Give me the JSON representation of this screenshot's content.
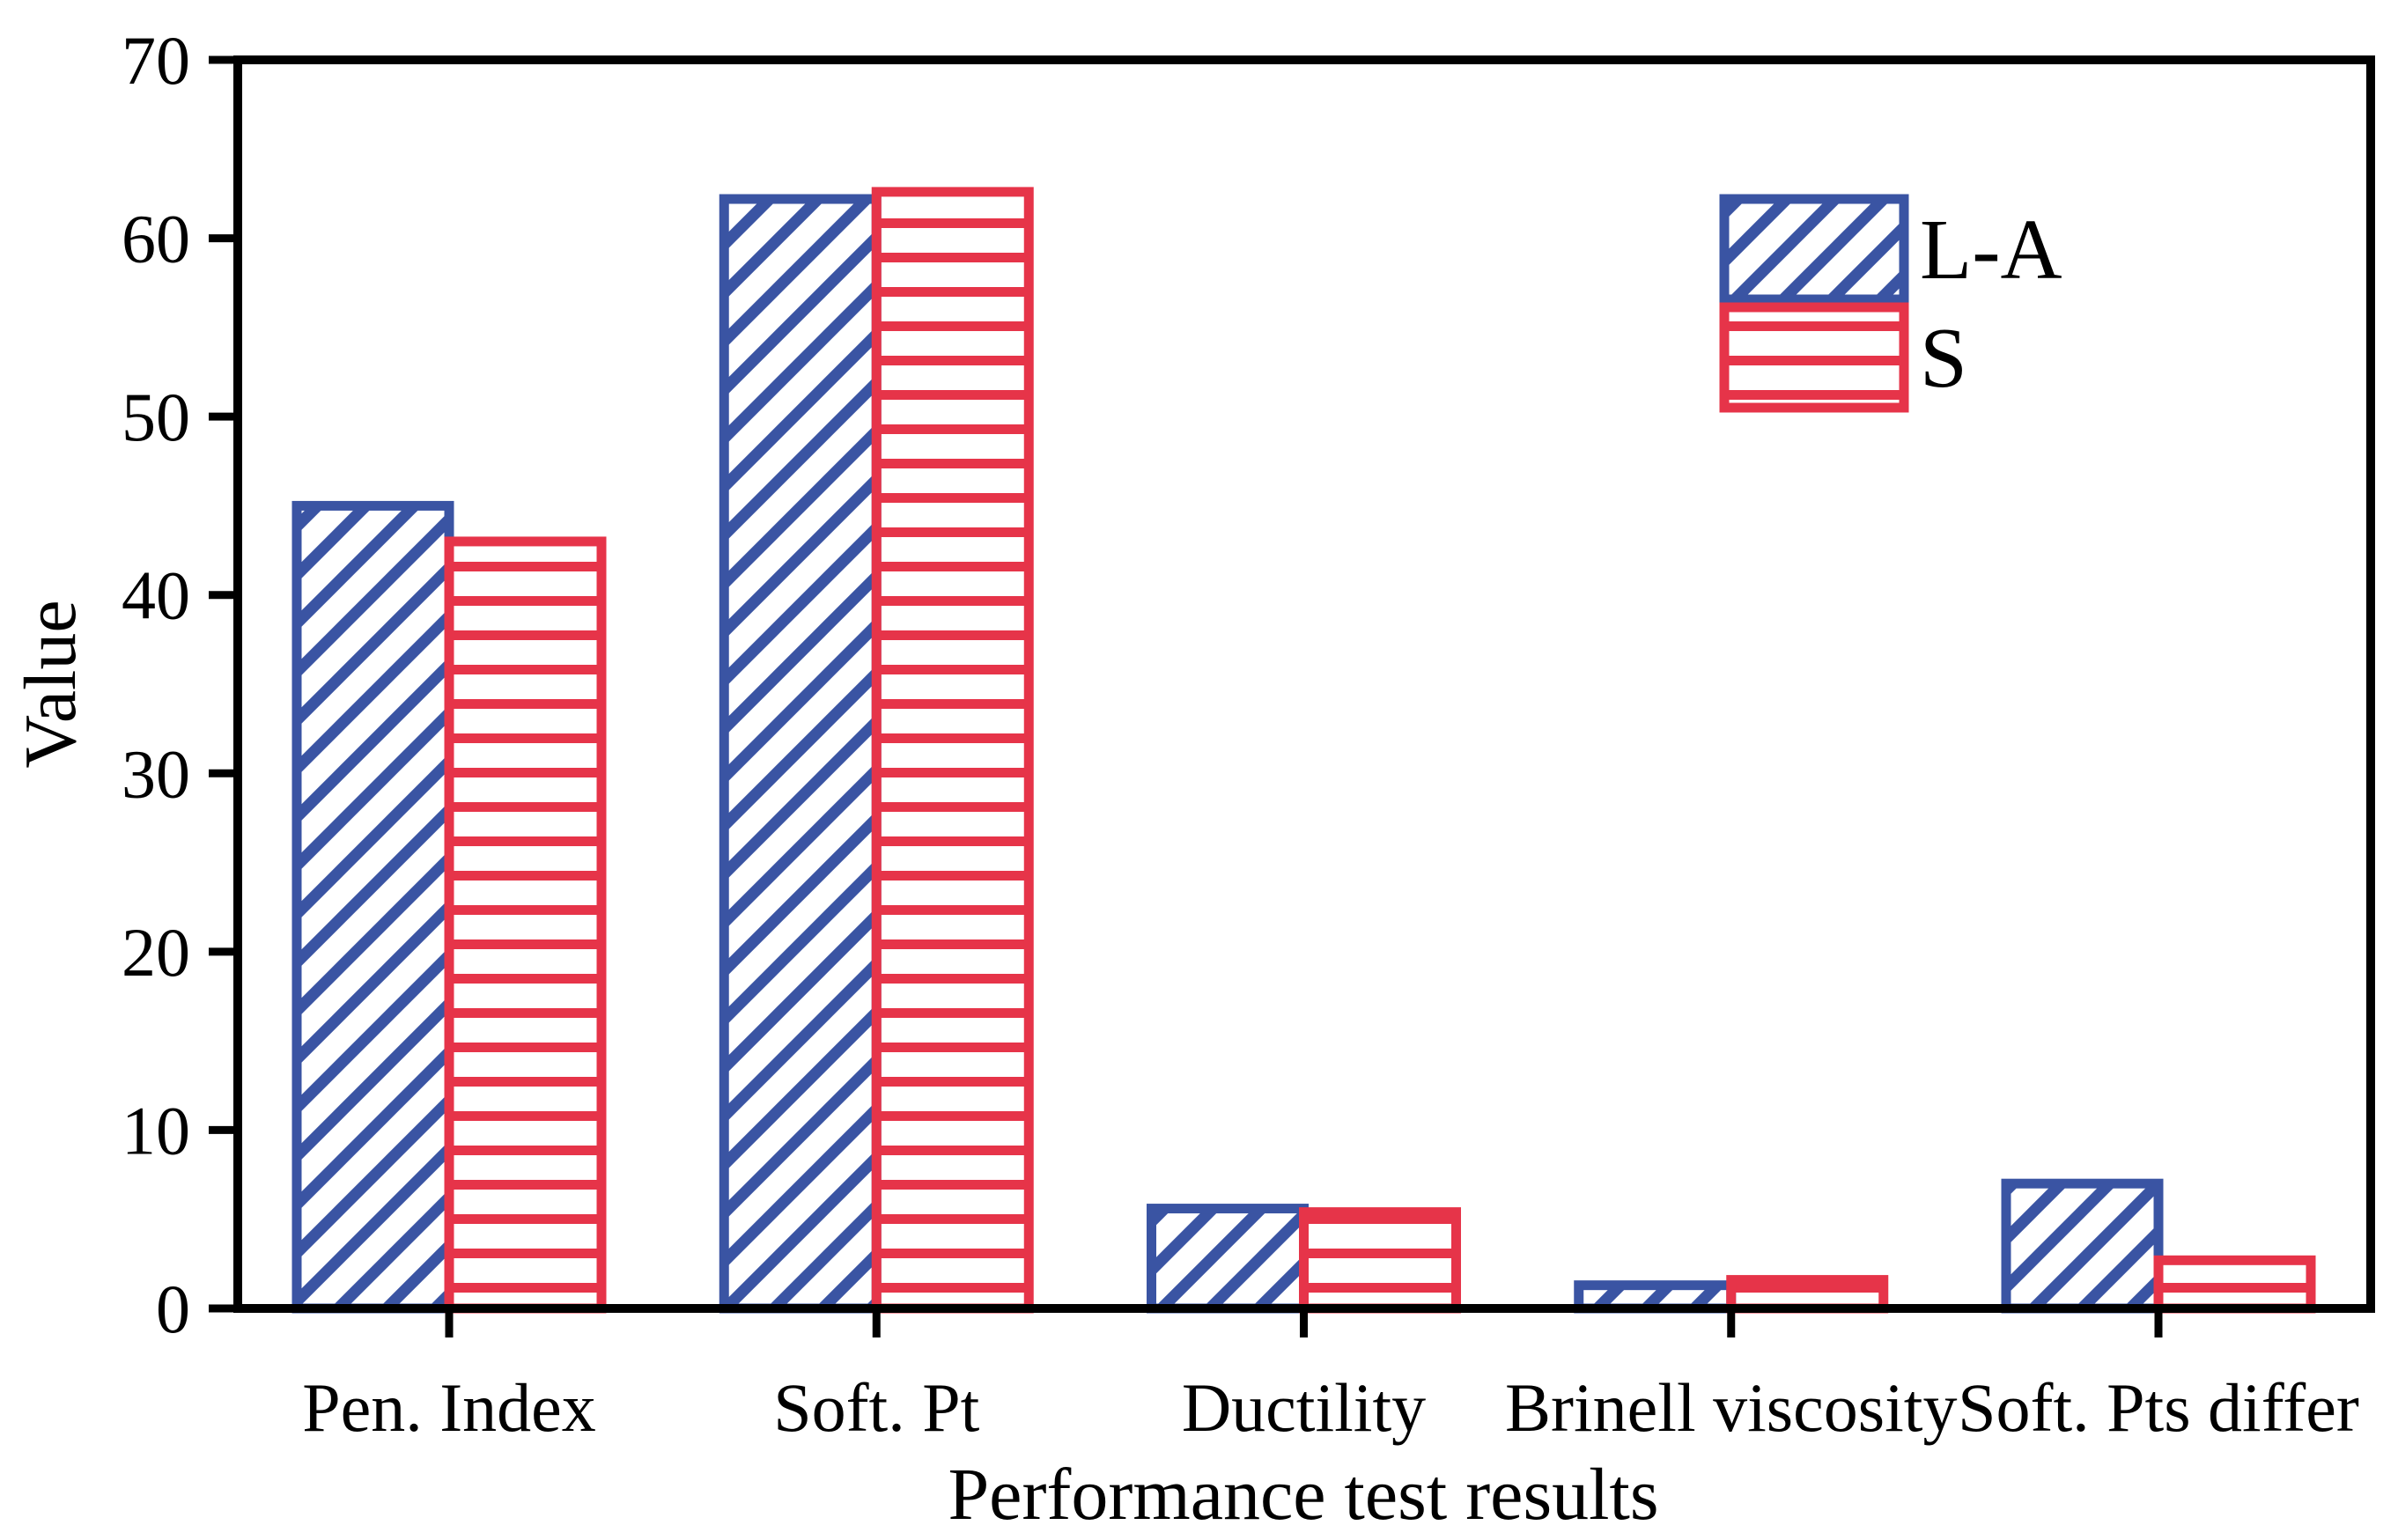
{
  "figure": {
    "background": "#ffffff",
    "text_color": "#000000"
  },
  "chart_data": {
    "type": "bar",
    "title": "",
    "xlabel": "Performance test results",
    "ylabel": "Value",
    "categories": [
      "Pen. Index",
      "Soft. Pt",
      "Ductility",
      "Brinell viscosity",
      "Soft. Pts differ"
    ],
    "series": [
      {
        "name": "L-A",
        "color": "#3A54A3",
        "hatch": "diagonal",
        "values": [
          45.0,
          62.2,
          5.6,
          1.3,
          7.0
        ]
      },
      {
        "name": "S",
        "color": "#E63449",
        "hatch": "horizontal",
        "values": [
          43.0,
          62.6,
          5.4,
          1.6,
          2.7
        ]
      }
    ],
    "ylim": [
      0,
      70
    ],
    "yticks": [
      0,
      10,
      20,
      30,
      40,
      50,
      60,
      70
    ],
    "grid": false,
    "legend": {
      "position": "top-right",
      "entries": [
        "L-A",
        "S"
      ]
    },
    "axis_color": "#000000"
  }
}
